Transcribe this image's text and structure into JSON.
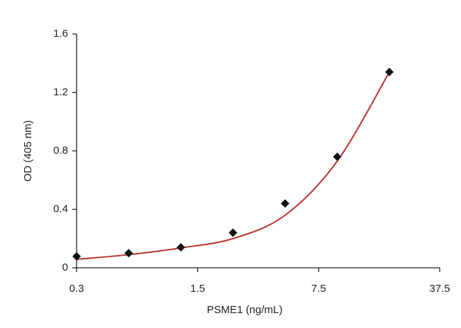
{
  "chart_data": {
    "type": "scatter",
    "xlabel": "PSME1 (ng/mL)",
    "ylabel": "OD (405 nm)",
    "xscale": "log",
    "x": [
      0.3,
      0.6,
      1.2,
      2.4,
      4.8,
      9.6,
      19.2
    ],
    "series": [
      {
        "color": "#111111",
        "values": [
          0.078,
          0.1,
          0.14,
          0.24,
          0.44,
          0.76,
          1.34
        ]
      }
    ],
    "fit": {
      "color": "#b8322e",
      "values": [
        0.058,
        0.09,
        0.136,
        0.2,
        0.36,
        0.73,
        1.34
      ]
    },
    "xlim": [
      0.3,
      37.5
    ],
    "xticks": [
      0.3,
      1.5,
      7.5,
      37.5
    ],
    "ylim": [
      0,
      1.6
    ],
    "yticks": [
      0,
      0.4,
      0.8,
      1.2,
      1.6
    ]
  }
}
